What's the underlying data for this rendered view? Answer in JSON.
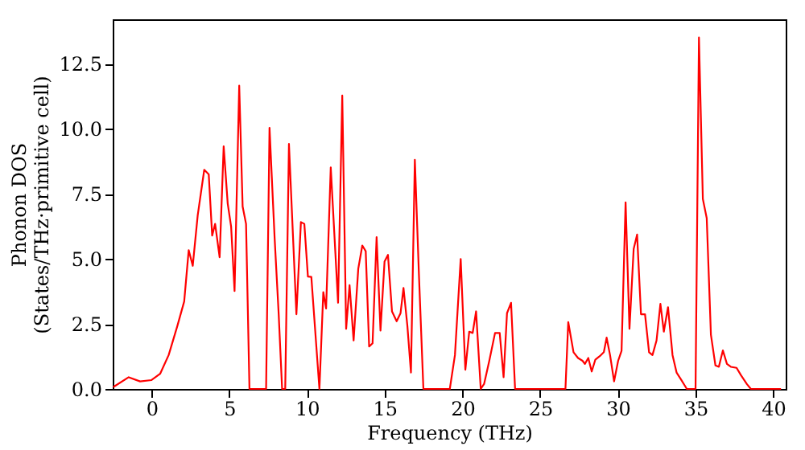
{
  "chart_data": {
    "type": "line",
    "xlabel": "Frequency (THz)",
    "ylabel": "Phonon DOS\n(States/THz·primitive cell)",
    "xlim": [
      -2.5,
      40.8
    ],
    "ylim": [
      0,
      14.2
    ],
    "xticks": [
      0,
      5,
      10,
      15,
      20,
      25,
      30,
      35,
      40
    ],
    "yticks": [
      {
        "value": 0,
        "label": "0.0"
      },
      {
        "value": 2.5,
        "label": "2.5"
      },
      {
        "value": 5,
        "label": "5.0"
      },
      {
        "value": 7.5,
        "label": "7.5"
      },
      {
        "value": 10,
        "label": "10.0"
      },
      {
        "value": 12.5,
        "label": "12.5"
      }
    ],
    "grid": false,
    "marker": "none",
    "line_style": "solid",
    "x": [
      -2.47,
      -1.47,
      -0.74,
      0,
      0.55,
      1.1,
      1.66,
      2.1,
      2.39,
      2.65,
      2.97,
      3.39,
      3.68,
      3.9,
      4.09,
      4.38,
      4.64,
      4.9,
      5.12,
      5.34,
      5.64,
      5.86,
      6.08,
      6.3,
      7.37,
      7.59,
      7.92,
      8.18,
      8.4,
      8.6,
      8.84,
      9.32,
      9.61,
      9.83,
      10.06,
      10.28,
      10.8,
      11.05,
      11.23,
      11.53,
      12.0,
      12.27,
      12.52,
      12.74,
      13.0,
      13.3,
      13.56,
      13.78,
      14.0,
      14.22,
      14.48,
      14.73,
      14.99,
      15.21,
      15.47,
      15.77,
      16.02,
      16.21,
      16.46,
      16.69,
      16.94,
      17.2,
      17.49,
      19.19,
      19.52,
      19.89,
      20.19,
      20.44,
      20.66,
      20.88,
      21.18,
      21.4,
      21.73,
      22.1,
      22.4,
      22.65,
      22.87,
      23.13,
      23.39,
      26.63,
      26.81,
      27.15,
      27.44,
      27.73,
      27.88,
      28.1,
      28.32,
      28.55,
      28.84,
      29.1,
      29.28,
      29.5,
      29.76,
      30.02,
      30.24,
      30.5,
      30.75,
      31.02,
      31.24,
      31.49,
      31.75,
      32.01,
      32.23,
      32.49,
      32.74,
      32.96,
      33.23,
      33.52,
      33.78,
      34.07,
      34.44,
      35.0,
      35.22,
      35.47,
      35.72,
      35.99,
      36.28,
      36.5,
      36.76,
      37.02,
      37.27,
      37.64,
      37.93,
      38.31,
      38.56,
      40.5
    ],
    "series": [
      {
        "color": "#ff0000",
        "values": [
          0.07,
          0.45,
          0.29,
          0.34,
          0.58,
          1.3,
          2.42,
          3.36,
          5.33,
          4.73,
          6.67,
          8.42,
          8.24,
          5.89,
          6.34,
          5.06,
          9.32,
          7.12,
          6.23,
          3.76,
          11.65,
          7.01,
          6.34,
          0,
          0,
          10.03,
          5.78,
          2.87,
          0,
          0,
          9.41,
          2.87,
          6.41,
          6.34,
          4.32,
          4.3,
          0,
          3.72,
          3.09,
          8.51,
          3.31,
          11.27,
          2.31,
          3.99,
          1.86,
          4.62,
          5.51,
          5.29,
          1.63,
          1.75,
          5.83,
          2.24,
          4.89,
          5.15,
          2.98,
          2.6,
          2.91,
          3.88,
          2.42,
          0.63,
          8.8,
          4.44,
          0,
          0,
          1.3,
          4.99,
          0.74,
          2.2,
          2.15,
          2.98,
          0,
          0.2,
          1.08,
          2.15,
          2.15,
          0.45,
          2.91,
          3.31,
          0,
          0,
          2.57,
          1.41,
          1.19,
          1.08,
          0.96,
          1.19,
          0.67,
          1.12,
          1.26,
          1.41,
          1.97,
          1.3,
          0.29,
          1.08,
          1.46,
          7.17,
          2.31,
          5.38,
          5.93,
          2.87,
          2.87,
          1.41,
          1.3,
          1.86,
          3.27,
          2.2,
          3.14,
          1.3,
          0.63,
          0.36,
          0,
          0,
          13.5,
          7.3,
          6.56,
          2.08,
          0.9,
          0.85,
          1.48,
          0.96,
          0.85,
          0.81,
          0.52,
          0.18,
          0,
          0
        ]
      }
    ]
  }
}
